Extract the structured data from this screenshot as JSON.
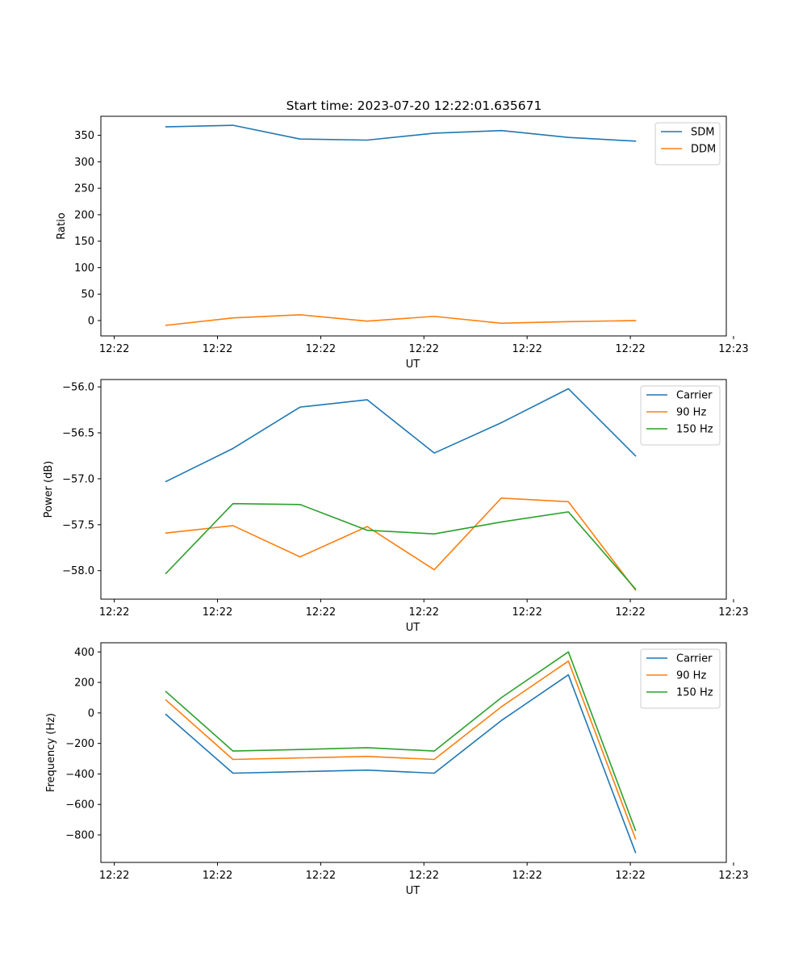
{
  "figure_title": "Start time: 2023-07-20 12:22:01.635671",
  "chart_data": [
    {
      "type": "line",
      "title": "Start time: 2023-07-20 12:22:01.635671",
      "xlabel": "UT",
      "ylabel": "Ratio",
      "x": [
        0.5,
        1.15,
        1.8,
        2.45,
        3.1,
        3.75,
        4.4,
        5.05
      ],
      "xlim": [
        -0.13,
        5.93
      ],
      "xticks": [
        0,
        1,
        2,
        3,
        4,
        5,
        6
      ],
      "xtick_labels": [
        "12:22",
        "12:22",
        "12:22",
        "12:22",
        "12:22",
        "12:22",
        "12:23"
      ],
      "ylim": [
        -29,
        386
      ],
      "yticks": [
        0,
        50,
        100,
        150,
        200,
        250,
        300,
        350
      ],
      "ytick_labels": [
        "0",
        "50",
        "100",
        "150",
        "200",
        "250",
        "300",
        "350"
      ],
      "legend_position": "top-right",
      "series": [
        {
          "name": "SDM",
          "color": "#1f77b4",
          "values": [
            366,
            369,
            343,
            341,
            354,
            359,
            346,
            339
          ]
        },
        {
          "name": "DDM",
          "color": "#ff7f0e",
          "values": [
            -9,
            5,
            11,
            -1,
            8,
            -5,
            -2,
            0
          ]
        }
      ]
    },
    {
      "type": "line",
      "title": "",
      "xlabel": "UT",
      "ylabel": "Power (dB)",
      "x": [
        0.5,
        1.15,
        1.8,
        2.45,
        3.1,
        3.75,
        4.4,
        5.05
      ],
      "xlim": [
        -0.13,
        5.93
      ],
      "xticks": [
        0,
        1,
        2,
        3,
        4,
        5,
        6
      ],
      "xtick_labels": [
        "12:22",
        "12:22",
        "12:22",
        "12:22",
        "12:22",
        "12:22",
        "12:23"
      ],
      "ylim": [
        -58.31,
        -55.92
      ],
      "yticks": [
        -58.0,
        -57.5,
        -57.0,
        -56.5,
        -56.0
      ],
      "ytick_labels": [
        "−58.0",
        "−57.5",
        "−57.0",
        "−56.5",
        "−56.0"
      ],
      "legend_position": "top-right",
      "series": [
        {
          "name": "Carrier",
          "color": "#1f77b4",
          "values": [
            -57.03,
            -56.67,
            -56.22,
            -56.14,
            -56.72,
            -56.39,
            -56.02,
            -56.75
          ]
        },
        {
          "name": "90 Hz",
          "color": "#ff7f0e",
          "values": [
            -57.59,
            -57.51,
            -57.85,
            -57.52,
            -57.99,
            -57.21,
            -57.25,
            -58.21
          ]
        },
        {
          "name": "150 Hz",
          "color": "#2ca02c",
          "values": [
            -58.03,
            -57.27,
            -57.28,
            -57.56,
            -57.6,
            -57.47,
            -57.36,
            -58.2
          ]
        }
      ]
    },
    {
      "type": "line",
      "title": "",
      "xlabel": "UT",
      "ylabel": "Frequency (Hz)",
      "x": [
        0.5,
        1.15,
        1.8,
        2.45,
        3.1,
        3.75,
        4.4,
        5.05
      ],
      "xlim": [
        -0.13,
        5.93
      ],
      "xticks": [
        0,
        1,
        2,
        3,
        4,
        5,
        6
      ],
      "xtick_labels": [
        "12:22",
        "12:22",
        "12:22",
        "12:22",
        "12:22",
        "12:22",
        "12:23"
      ],
      "ylim": [
        -980,
        460
      ],
      "yticks": [
        -800,
        -600,
        -400,
        -200,
        0,
        200,
        400
      ],
      "ytick_labels": [
        "−800",
        "−600",
        "−400",
        "−200",
        "0",
        "200",
        "400"
      ],
      "legend_position": "top-right",
      "series": [
        {
          "name": "Carrier",
          "color": "#1f77b4",
          "values": [
            -10,
            -395,
            -385,
            -375,
            -395,
            -50,
            250,
            -915
          ]
        },
        {
          "name": "90 Hz",
          "color": "#ff7f0e",
          "values": [
            85,
            -305,
            -295,
            -285,
            -305,
            40,
            340,
            -825
          ]
        },
        {
          "name": "150 Hz",
          "color": "#2ca02c",
          "values": [
            140,
            -250,
            -240,
            -228,
            -250,
            100,
            400,
            -770
          ]
        }
      ]
    }
  ]
}
